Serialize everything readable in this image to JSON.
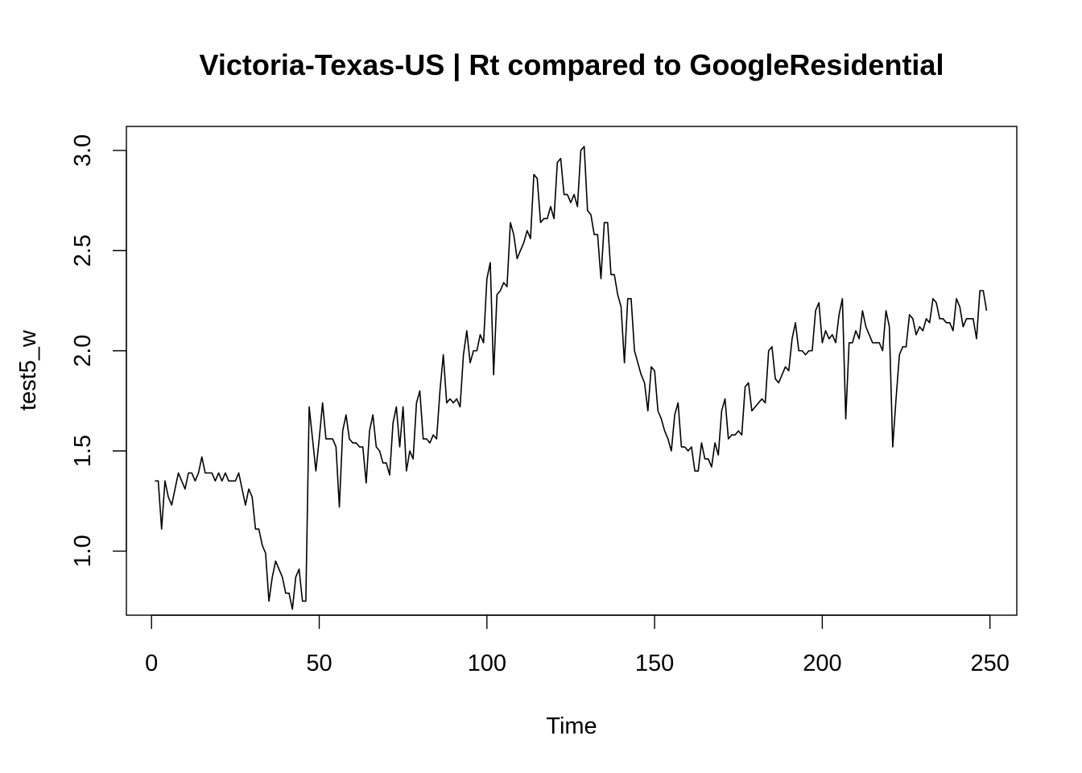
{
  "chart_data": {
    "type": "line",
    "title": "Victoria-Texas-US | Rt compared to GoogleResidential",
    "xlabel": "Time",
    "ylabel": "test5_w",
    "xlim": [
      -7.5,
      258
    ],
    "ylim": [
      0.68,
      3.12
    ],
    "x_ticks": [
      0,
      50,
      100,
      150,
      200,
      250
    ],
    "x_tick_labels": [
      "0",
      "50",
      "100",
      "150",
      "200",
      "250"
    ],
    "y_ticks": [
      1.0,
      1.5,
      2.0,
      2.5,
      3.0
    ],
    "y_tick_labels": [
      "1.0",
      "1.5",
      "2.0",
      "2.5",
      "3.0"
    ],
    "grid": false,
    "legend": "none",
    "series": [
      {
        "x_start": 1,
        "values": [
          1.35,
          1.35,
          1.11,
          1.35,
          1.27,
          1.23,
          1.31,
          1.39,
          1.35,
          1.31,
          1.39,
          1.39,
          1.35,
          1.39,
          1.47,
          1.39,
          1.39,
          1.39,
          1.35,
          1.39,
          1.35,
          1.39,
          1.35,
          1.35,
          1.35,
          1.39,
          1.31,
          1.23,
          1.31,
          1.27,
          1.11,
          1.11,
          1.03,
          0.99,
          0.75,
          0.87,
          0.95,
          0.91,
          0.87,
          0.79,
          0.79,
          0.71,
          0.87,
          0.91,
          0.75,
          0.75,
          1.72,
          1.56,
          1.4,
          1.56,
          1.74,
          1.56,
          1.56,
          1.56,
          1.52,
          1.22,
          1.6,
          1.68,
          1.56,
          1.54,
          1.54,
          1.52,
          1.52,
          1.34,
          1.6,
          1.68,
          1.52,
          1.5,
          1.44,
          1.44,
          1.38,
          1.64,
          1.72,
          1.52,
          1.72,
          1.4,
          1.5,
          1.46,
          1.74,
          1.8,
          1.56,
          1.56,
          1.54,
          1.58,
          1.56,
          1.8,
          1.98,
          1.74,
          1.76,
          1.74,
          1.76,
          1.72,
          1.98,
          2.1,
          1.94,
          2.0,
          2.0,
          2.08,
          2.04,
          2.36,
          2.44,
          1.88,
          2.28,
          2.3,
          2.34,
          2.32,
          2.64,
          2.58,
          2.46,
          2.5,
          2.54,
          2.6,
          2.56,
          2.88,
          2.86,
          2.64,
          2.66,
          2.66,
          2.72,
          2.66,
          2.94,
          2.96,
          2.78,
          2.78,
          2.74,
          2.78,
          2.72,
          3.0,
          3.02,
          2.7,
          2.68,
          2.58,
          2.58,
          2.36,
          2.64,
          2.64,
          2.38,
          2.38,
          2.28,
          2.22,
          1.94,
          2.26,
          2.26,
          2.0,
          1.94,
          1.88,
          1.84,
          1.7,
          1.92,
          1.9,
          1.7,
          1.66,
          1.6,
          1.56,
          1.5,
          1.68,
          1.74,
          1.52,
          1.52,
          1.5,
          1.52,
          1.4,
          1.4,
          1.54,
          1.46,
          1.46,
          1.42,
          1.54,
          1.48,
          1.7,
          1.76,
          1.56,
          1.58,
          1.58,
          1.6,
          1.58,
          1.82,
          1.84,
          1.7,
          1.72,
          1.74,
          1.76,
          1.74,
          2.0,
          2.02,
          1.86,
          1.84,
          1.88,
          1.92,
          1.9,
          2.06,
          2.14,
          2.0,
          2.0,
          1.98,
          2.0,
          2.0,
          2.2,
          2.24,
          2.04,
          2.1,
          2.06,
          2.08,
          2.04,
          2.18,
          2.26,
          1.66,
          2.04,
          2.04,
          2.1,
          2.06,
          2.2,
          2.12,
          2.08,
          2.04,
          2.04,
          2.04,
          2.0,
          2.2,
          2.12,
          1.52,
          1.76,
          1.98,
          2.02,
          2.02,
          2.18,
          2.16,
          2.08,
          2.12,
          2.1,
          2.16,
          2.14,
          2.26,
          2.24,
          2.16,
          2.16,
          2.14,
          2.14,
          2.1,
          2.26,
          2.22,
          2.12,
          2.16,
          2.16,
          2.16,
          2.06,
          2.3,
          2.3,
          2.2
        ]
      }
    ]
  }
}
